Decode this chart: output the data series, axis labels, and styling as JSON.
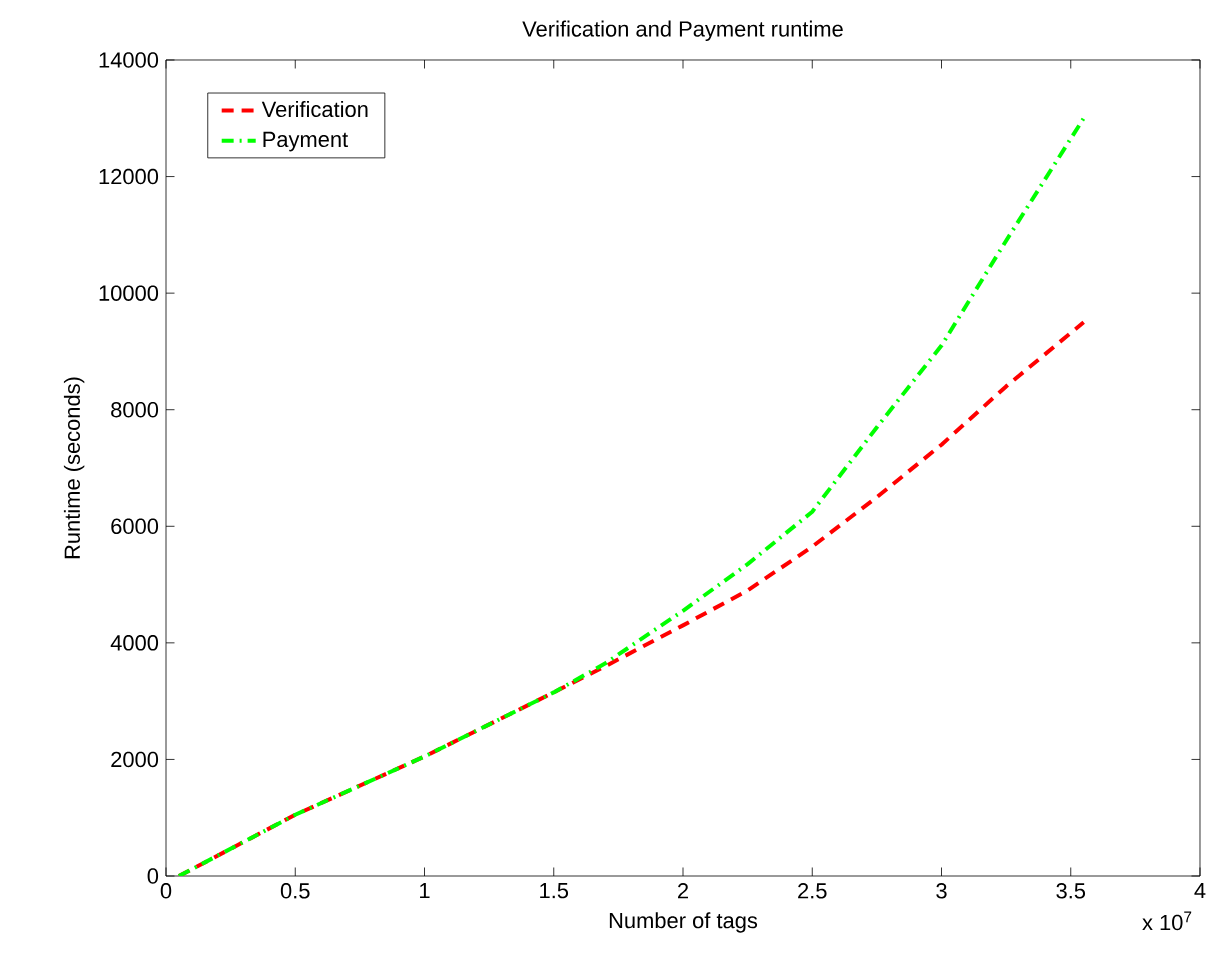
{
  "chart_data": {
    "type": "line",
    "title": "Verification and Payment runtime",
    "xlabel": "Number of tags",
    "ylabel": "Runtime (seconds)",
    "annotations": [
      "x 10$^{7}$"
    ],
    "x": [
      0.05,
      0.5,
      1,
      1.5,
      1.7,
      2,
      2.25,
      2.5,
      2.75,
      3,
      3.25,
      3.55
    ],
    "series": [
      {
        "name": "Verification",
        "color": "#ff0000",
        "line_style": "dashed",
        "values": [
          0,
          1050,
          2050,
          3150,
          3600,
          4300,
          4900,
          5650,
          6500,
          7400,
          8400,
          9500
        ]
      },
      {
        "name": "Payment",
        "color": "#00ff00",
        "line_style": "dashdot",
        "values": [
          0,
          1050,
          2050,
          3150,
          3650,
          4550,
          5350,
          6250,
          7700,
          9100,
          10900,
          13000
        ]
      }
    ],
    "xlim": [
      0,
      4
    ],
    "ylim": [
      0,
      14000
    ],
    "xticks": [
      0,
      0.5,
      1,
      1.5,
      2,
      2.5,
      3,
      3.5,
      4
    ],
    "yticks": [
      0,
      2000,
      4000,
      6000,
      8000,
      10000,
      12000,
      14000
    ],
    "legend": "top left",
    "grid": false,
    "marker": "none"
  }
}
